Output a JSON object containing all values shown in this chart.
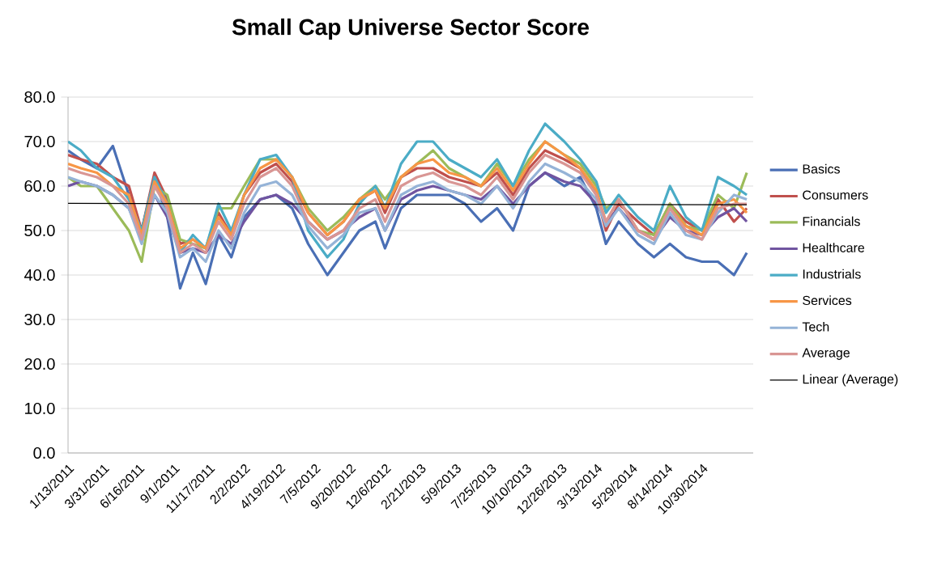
{
  "chart_data": {
    "type": "line",
    "title": "Small Cap Universe Sector Score",
    "x": [
      "2011-01-13",
      "2011-02-10",
      "2011-03-17",
      "2011-04-21",
      "2011-05-26",
      "2011-06-23",
      "2011-07-21",
      "2011-08-18",
      "2011-09-15",
      "2011-10-13",
      "2011-11-10",
      "2011-12-08",
      "2012-01-05",
      "2012-02-02",
      "2012-03-08",
      "2012-04-12",
      "2012-05-17",
      "2012-06-21",
      "2012-08-02",
      "2012-09-06",
      "2012-10-11",
      "2012-11-15",
      "2012-12-06",
      "2013-01-10",
      "2013-02-14",
      "2013-03-21",
      "2013-04-25",
      "2013-05-30",
      "2013-07-04",
      "2013-08-08",
      "2013-09-12",
      "2013-10-17",
      "2013-11-21",
      "2014-01-02",
      "2014-02-06",
      "2014-03-13",
      "2014-04-03",
      "2014-05-01",
      "2014-06-12",
      "2014-07-17",
      "2014-08-21",
      "2014-09-25",
      "2014-10-30",
      "2014-12-04",
      "2015-01-08",
      "2015-02-05"
    ],
    "series": [
      {
        "name": "Basics",
        "color": "#4a6fb5",
        "values": [
          68,
          66,
          64,
          69,
          58,
          50,
          62,
          53,
          37,
          45,
          38,
          49,
          44,
          53,
          57,
          58,
          55,
          47,
          40,
          45,
          50,
          52,
          46,
          55,
          58,
          58,
          58,
          56,
          52,
          55,
          50,
          60,
          63,
          60,
          62,
          55,
          47,
          52,
          47,
          44,
          47,
          44,
          43,
          43,
          40,
          45
        ]
      },
      {
        "name": "Consumers",
        "color": "#c0504d",
        "values": [
          67,
          66,
          65,
          62,
          60,
          50,
          63,
          57,
          47,
          48,
          46,
          54,
          49,
          58,
          63,
          65,
          61,
          54,
          49,
          52,
          57,
          59,
          54,
          62,
          64,
          64,
          62,
          61,
          60,
          63,
          58,
          64,
          68,
          66,
          64,
          58,
          50,
          56,
          52,
          49,
          56,
          52,
          50,
          57,
          52,
          55
        ]
      },
      {
        "name": "Financials",
        "color": "#9bbb59",
        "values": [
          62,
          60,
          60,
          55,
          50,
          43,
          60,
          58,
          48,
          47,
          46,
          55,
          55,
          60,
          66,
          66,
          62,
          55,
          50,
          53,
          57,
          60,
          57,
          62,
          65,
          68,
          64,
          62,
          60,
          65,
          60,
          66,
          70,
          67,
          65,
          60,
          55,
          57,
          50,
          49,
          56,
          51,
          50,
          58,
          55,
          63
        ]
      },
      {
        "name": "Healthcare",
        "color": "#7054a0",
        "values": [
          60,
          61,
          60,
          58,
          55,
          48,
          58,
          53,
          45,
          46,
          45,
          49,
          47,
          52,
          57,
          58,
          56,
          52,
          48,
          50,
          53,
          55,
          50,
          57,
          59,
          60,
          59,
          58,
          57,
          60,
          56,
          60,
          63,
          61,
          60,
          56,
          52,
          55,
          50,
          48,
          53,
          50,
          49,
          53,
          55,
          52
        ]
      },
      {
        "name": "Industrials",
        "color": "#4bacc6",
        "values": [
          70,
          68,
          64,
          62,
          57,
          50,
          62,
          56,
          45,
          49,
          46,
          56,
          50,
          58,
          66,
          67,
          62,
          50,
          44,
          48,
          56,
          60,
          55,
          65,
          70,
          70,
          66,
          64,
          62,
          66,
          60,
          68,
          74,
          70,
          66,
          61,
          54,
          58,
          53,
          50,
          60,
          53,
          50,
          62,
          60,
          58
        ]
      },
      {
        "name": "Services",
        "color": "#f79646",
        "values": [
          65,
          64,
          63,
          60,
          58,
          49,
          61,
          56,
          46,
          48,
          46,
          53,
          49,
          58,
          64,
          66,
          62,
          54,
          49,
          52,
          57,
          59,
          55,
          62,
          65,
          66,
          63,
          62,
          60,
          64,
          59,
          65,
          70,
          67,
          64,
          59,
          52,
          57,
          50,
          48,
          55,
          51,
          49,
          56,
          57,
          54
        ]
      },
      {
        "name": "Tech",
        "color": "#95b3d7",
        "values": [
          62,
          61,
          60,
          58,
          55,
          47,
          58,
          54,
          44,
          46,
          43,
          50,
          46,
          54,
          60,
          61,
          58,
          51,
          46,
          49,
          54,
          55,
          50,
          58,
          60,
          61,
          59,
          58,
          56,
          60,
          55,
          61,
          65,
          63,
          61,
          57,
          51,
          55,
          49,
          47,
          54,
          49,
          48,
          54,
          58,
          57
        ]
      },
      {
        "name": "Average",
        "color": "#d99694",
        "values": [
          64,
          63,
          62,
          60,
          56,
          48,
          60,
          55,
          45,
          47,
          45,
          52,
          48,
          56,
          62,
          64,
          60,
          52,
          48,
          50,
          55,
          57,
          52,
          60,
          62,
          63,
          61,
          60,
          58,
          62,
          57,
          63,
          67,
          65,
          63,
          58,
          52,
          57,
          50,
          48,
          55,
          50,
          48,
          55,
          56,
          56
        ]
      },
      {
        "name": "Linear (Average)",
        "color": "#000000",
        "type": "line",
        "x": [
          "2011-01-13",
          "2015-02-05"
        ],
        "values": [
          56.1,
          55.8
        ]
      }
    ],
    "xlim": [
      "2011-01-13",
      "2015-02-19"
    ],
    "xticks": [
      {
        "value": "2011-01-13",
        "label": "1/13/2011"
      },
      {
        "value": "2011-03-31",
        "label": "3/31/2011"
      },
      {
        "value": "2011-06-16",
        "label": "6/16/2011"
      },
      {
        "value": "2011-09-01",
        "label": "9/1/2011"
      },
      {
        "value": "2011-11-17",
        "label": "11/17/2011"
      },
      {
        "value": "2012-02-02",
        "label": "2/2/2012"
      },
      {
        "value": "2012-04-19",
        "label": "4/19/2012"
      },
      {
        "value": "2012-07-05",
        "label": "7/5/2012"
      },
      {
        "value": "2012-09-20",
        "label": "9/20/2012"
      },
      {
        "value": "2012-12-06",
        "label": "12/6/2012"
      },
      {
        "value": "2013-02-21",
        "label": "2/21/2013"
      },
      {
        "value": "2013-05-09",
        "label": "5/9/2013"
      },
      {
        "value": "2013-07-25",
        "label": "7/25/2013"
      },
      {
        "value": "2013-10-10",
        "label": "10/10/2013"
      },
      {
        "value": "2013-12-26",
        "label": "12/26/2013"
      },
      {
        "value": "2014-03-13",
        "label": "3/13/2014"
      },
      {
        "value": "2014-05-29",
        "label": "5/29/2014"
      },
      {
        "value": "2014-08-14",
        "label": "8/14/2014"
      },
      {
        "value": "2014-10-30",
        "label": "10/30/2014"
      }
    ],
    "ylim": [
      0,
      80
    ],
    "yticks": [
      {
        "value": 0,
        "label": "0.0"
      },
      {
        "value": 10,
        "label": "10.0"
      },
      {
        "value": 20,
        "label": "20.0"
      },
      {
        "value": 30,
        "label": "30.0"
      },
      {
        "value": 40,
        "label": "40.0"
      },
      {
        "value": 50,
        "label": "50.0"
      },
      {
        "value": 60,
        "label": "60.0"
      },
      {
        "value": 70,
        "label": "70.0"
      },
      {
        "value": 80,
        "label": "80.0"
      }
    ],
    "grid": "y",
    "legend": "right"
  }
}
